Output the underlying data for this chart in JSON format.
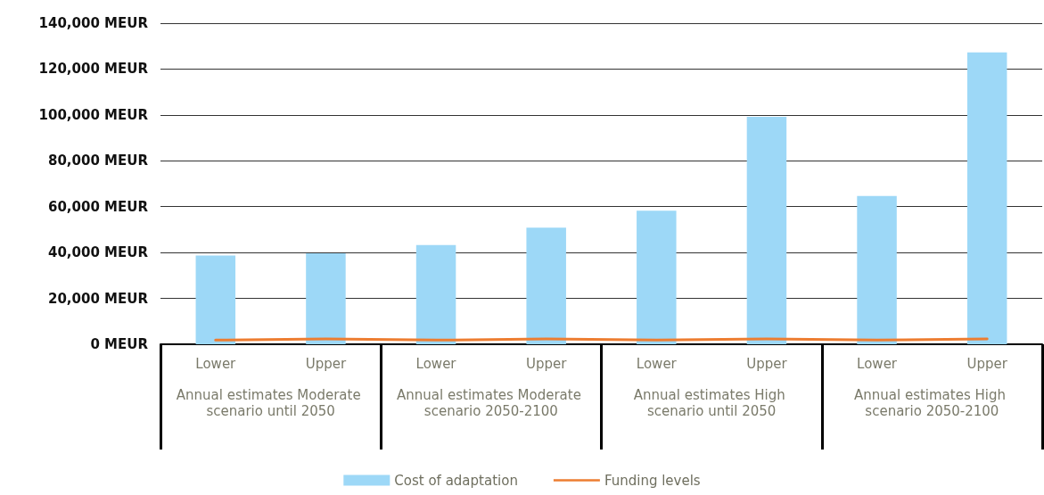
{
  "chart_data": {
    "type": "bar",
    "categories": [
      "Lower",
      "Upper",
      "Lower",
      "Upper",
      "Lower",
      "Upper",
      "Lower",
      "Upper"
    ],
    "series": [
      {
        "name": "Cost of adaptation",
        "color": "#9dd8f7",
        "values": [
          38700,
          39700,
          43300,
          50800,
          58200,
          99200,
          64700,
          127300
        ]
      },
      {
        "name": "Funding levels",
        "type": "line",
        "color": "#ed7d31",
        "values": [
          1800,
          2300,
          1800,
          2300,
          1800,
          2300,
          1800,
          2300
        ]
      }
    ],
    "annotations": [
      "Annual estimates Moderate scenario until 2050",
      "Annual estimates Moderate scenario 2050-2100",
      "Annual estimates High scenario until 2050",
      "Annual estimates High scenario 2050-2100"
    ],
    "ylim": [
      0,
      140000
    ],
    "yticks": [
      {
        "value": 0,
        "label": "0 MEUR"
      },
      {
        "value": 20000,
        "label": "20,000 MEUR"
      },
      {
        "value": 40000,
        "label": "40,000 MEUR"
      },
      {
        "value": 60000,
        "label": "60,000 MEUR"
      },
      {
        "value": 80000,
        "label": "80,000 MEUR"
      },
      {
        "value": 100000,
        "label": "100,000 MEUR"
      },
      {
        "value": 120000,
        "label": "120,000 MEUR"
      },
      {
        "value": 140000,
        "label": "140,000 MEUR"
      }
    ],
    "grid": "y",
    "legend": "bottom",
    "marker": "none"
  }
}
